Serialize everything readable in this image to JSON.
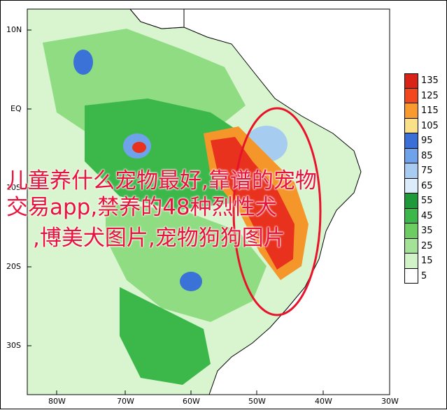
{
  "map": {
    "lat_labels": [
      "10N",
      "EQ",
      "10S",
      "20S",
      "30S"
    ],
    "lon_labels": [
      "80W",
      "70W",
      "60W",
      "50W",
      "40W",
      "30W"
    ],
    "colors": {
      "ocean": "#ffffff",
      "land_light": "#d9f5cf",
      "land_mid": "#8fdc82",
      "land_dark": "#3cb84a",
      "blue_light": "#a6cdf0",
      "blue_dark": "#3b72d8",
      "red": "#e8321e",
      "orange": "#f5962a",
      "yellow": "#f9dd6e",
      "highlight_circle": "#e8122a"
    }
  },
  "colorbar": {
    "levels": [
      {
        "label": "135",
        "color": "#d82418"
      },
      {
        "label": "125",
        "color": "#f2461e"
      },
      {
        "label": "115",
        "color": "#f99a2e"
      },
      {
        "label": "105",
        "color": "#fbe08a"
      },
      {
        "label": "95",
        "color": "#3a6fd8"
      },
      {
        "label": "85",
        "color": "#6ea3ec"
      },
      {
        "label": "75",
        "color": "#a8cbf2"
      },
      {
        "label": "65",
        "color": "#dcecfb"
      },
      {
        "label": "55",
        "color": "#1f9a3a"
      },
      {
        "label": "45",
        "color": "#3cb84a"
      },
      {
        "label": "35",
        "color": "#6dcd62"
      },
      {
        "label": "25",
        "color": "#a3e297"
      },
      {
        "label": "15",
        "color": "#d2f3c8"
      },
      {
        "label": "5",
        "color": "#ffffff"
      }
    ]
  },
  "overlay": {
    "line1": "儿童养什么宠物最好,靠谱的宠物",
    "line2": "交易app,禁养的48种烈性犬",
    "line3": ",博美犬图片,宠物狗狗图片"
  }
}
